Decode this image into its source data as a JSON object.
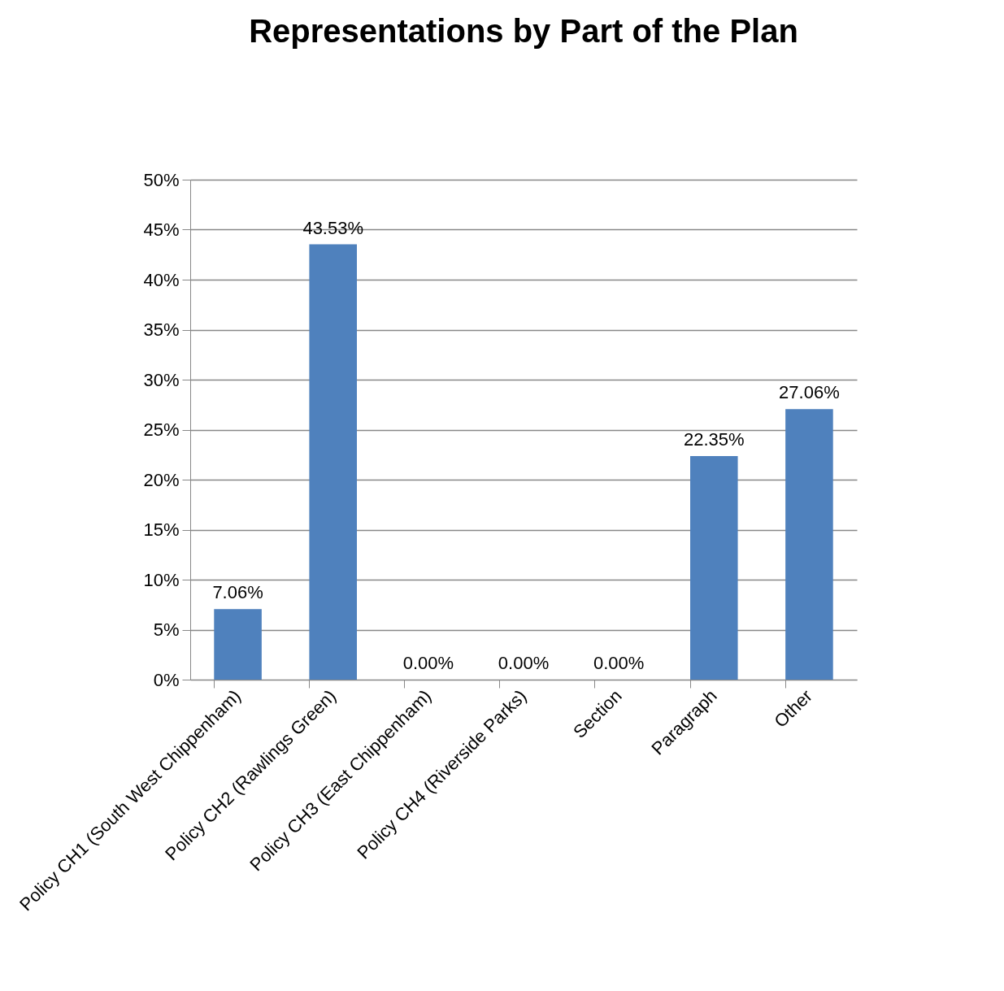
{
  "chart_data": {
    "type": "bar",
    "title": "Representations by Part of the Plan",
    "categories": [
      "Policy CH1 (South West Chippenham)",
      "Policy CH2 (Rawlings Green)",
      "Policy CH3 (East Chippenham)",
      "Policy CH4 (Riverside Parks)",
      "Section",
      "Paragraph",
      "Other"
    ],
    "values": [
      7.06,
      43.53,
      0,
      0,
      0,
      22.35,
      27.06
    ],
    "value_labels": [
      "7.06%",
      "43.53%",
      "0.00%",
      "0.00%",
      "0.00%",
      "22.35%",
      "27.06%"
    ],
    "color": "#4f81bd",
    "ylim": [
      0,
      50
    ],
    "yticks": [
      {
        "value": 0,
        "label": "0%"
      },
      {
        "value": 5,
        "label": "5%"
      },
      {
        "value": 10,
        "label": "10%"
      },
      {
        "value": 15,
        "label": "15%"
      },
      {
        "value": 20,
        "label": "20%"
      },
      {
        "value": 25,
        "label": "25%"
      },
      {
        "value": 30,
        "label": "30%"
      },
      {
        "value": 35,
        "label": "35%"
      },
      {
        "value": 40,
        "label": "40%"
      },
      {
        "value": 45,
        "label": "45%"
      },
      {
        "value": 50,
        "label": "50%"
      }
    ],
    "grid": "y"
  }
}
